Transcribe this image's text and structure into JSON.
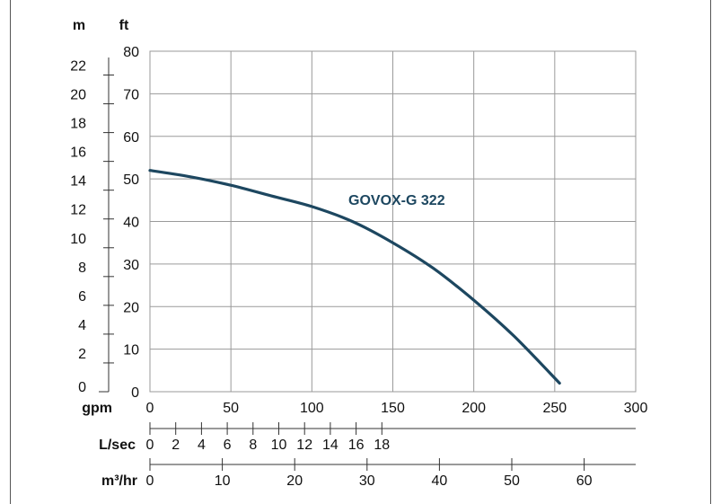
{
  "chart_data": {
    "type": "line",
    "series": [
      {
        "name": "GOVOX-G 322",
        "x": [
          0,
          25,
          50,
          75,
          100,
          125,
          150,
          175,
          200,
          225,
          253
        ],
        "y": [
          52,
          50.5,
          48.5,
          46,
          43.5,
          40,
          35,
          29,
          21.5,
          13,
          2
        ]
      }
    ],
    "annotation": "GOVOX-G 322",
    "xlim": [
      0,
      300
    ],
    "ylim": [
      0,
      80
    ],
    "grid": true,
    "colors": {
      "curve": "#1d4760",
      "annotation": "#1d4760",
      "grid": "#9a9a9a",
      "axis": "#333333"
    },
    "axes": {
      "m": {
        "label": "m",
        "ticks": [
          "0",
          "2",
          "4",
          "6",
          "8",
          "10",
          "12",
          "14",
          "16",
          "18",
          "20",
          "22"
        ]
      },
      "ft": {
        "label": "ft",
        "ticks": [
          "0",
          "10",
          "20",
          "30",
          "40",
          "50",
          "60",
          "70",
          "80"
        ]
      },
      "gpm": {
        "label": "gpm",
        "ticks": [
          "0",
          "50",
          "100",
          "150",
          "200",
          "250",
          "300"
        ]
      },
      "lsec": {
        "label": "L/sec",
        "ticks": [
          "0",
          "2",
          "4",
          "6",
          "8",
          "10",
          "12",
          "14",
          "16",
          "18"
        ]
      },
      "m3hr": {
        "label": "m³/hr",
        "ticks": [
          "0",
          "10",
          "20",
          "30",
          "40",
          "50",
          "60"
        ]
      }
    }
  }
}
